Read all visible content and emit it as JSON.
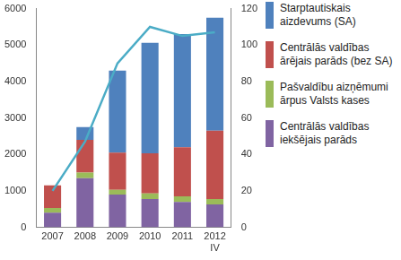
{
  "chart_data": {
    "type": "bar",
    "categories": [
      "2007",
      "2008",
      "2009",
      "2010",
      "2011",
      "2012 IV"
    ],
    "stacked": true,
    "grid": false,
    "legend": "right",
    "series": [
      {
        "name": "Centrālās valdības iekšējais parāds",
        "color": "#8064a2",
        "values": [
          400,
          1350,
          900,
          780,
          700,
          630
        ]
      },
      {
        "name": "Pašvaldību aizņēmumi ārpus Valsts kases",
        "color": "#9bbb59",
        "values": [
          130,
          150,
          130,
          150,
          150,
          150
        ]
      },
      {
        "name": "Centrālās valdības ārējais parāds (bez SA)",
        "color": "#c0504d",
        "values": [
          620,
          900,
          1020,
          1100,
          1350,
          1870
        ]
      },
      {
        "name": "Starptautiskais aizdevums (SA)",
        "color": "#4f81bd",
        "values": [
          0,
          350,
          2250,
          3030,
          3100,
          3100
        ]
      },
      {
        "type": "line",
        "axis": "y2",
        "color": "#4bacc6",
        "marker": "none",
        "values": [
          20,
          47,
          90,
          110,
          105,
          107
        ]
      }
    ],
    "ylim": [
      0,
      6000
    ],
    "yticks": [
      0,
      1000,
      2000,
      3000,
      4000,
      5000,
      6000
    ],
    "y2lim": [
      0,
      120
    ],
    "y2ticks": [
      0,
      20,
      40,
      60,
      80,
      100,
      120
    ]
  }
}
